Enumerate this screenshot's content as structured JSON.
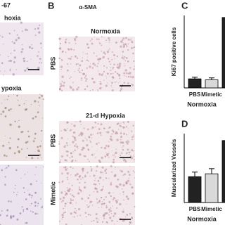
{
  "panel_a": {
    "stain_fragment": "-67",
    "top_fragment": "hoxia",
    "mid_fragment": "ypoxia"
  },
  "panel_b": {
    "label": "B",
    "stain": "α-SMA",
    "groups": [
      {
        "title": "Normoxia",
        "rows": [
          "PBS"
        ]
      },
      {
        "title": "21-d Hypoxia",
        "rows": [
          "PBS",
          "Mimetic"
        ]
      }
    ]
  },
  "chart_data": [
    {
      "type": "bar",
      "panel": "C",
      "ylabel": "Ki67 positive cells",
      "xlabel": "Normoxia",
      "categories": [
        "PBS",
        "Mimetic",
        null
      ],
      "values": [
        0.45,
        0.4,
        3.5
      ],
      "errors": [
        0.08,
        0.1,
        null
      ],
      "colors": [
        "#222222",
        "#d9d9d9",
        "#222222"
      ],
      "ylim": [
        0,
        3.6
      ]
    },
    {
      "type": "bar",
      "panel": "D",
      "ylabel": "Muscularized Vessels",
      "xlabel": "Normoxia",
      "categories": [
        "PBS",
        "Mimetic",
        null
      ],
      "values": [
        4.5,
        5.0,
        10.8
      ],
      "errors": [
        0.8,
        0.9,
        null
      ],
      "colors": [
        "#222222",
        "#d9d9d9",
        "#222222"
      ],
      "ylim": [
        0,
        12
      ]
    }
  ]
}
